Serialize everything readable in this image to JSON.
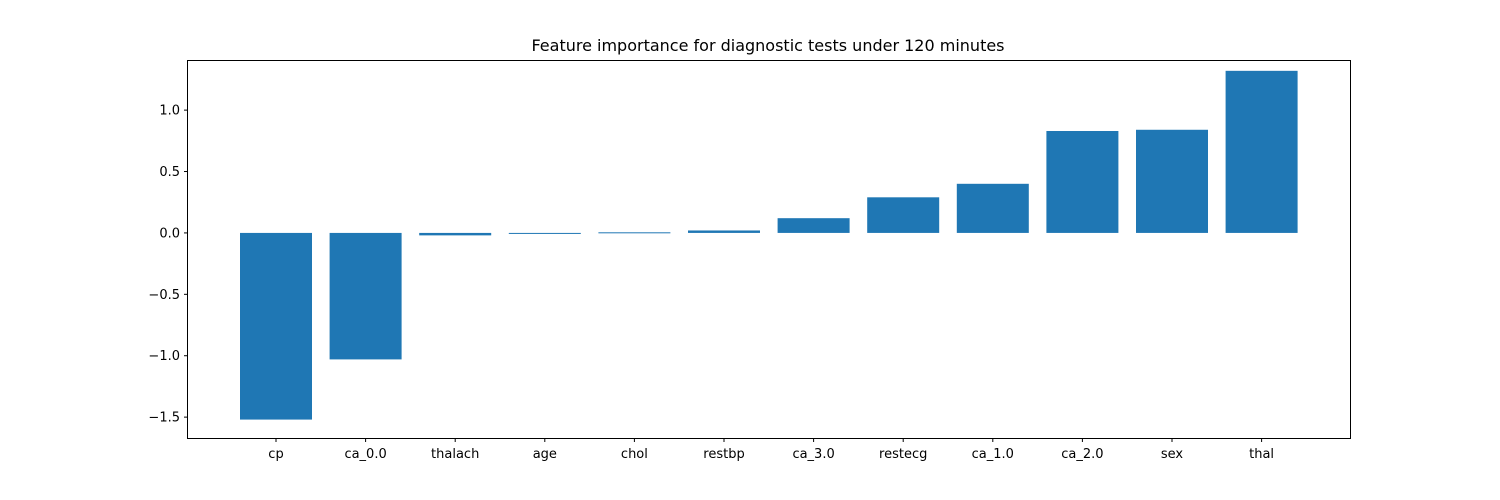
{
  "chart_data": {
    "type": "bar",
    "title": "Feature importance for diagnostic tests under 120 minutes",
    "xlabel": "",
    "ylabel": "",
    "categories": [
      "cp",
      "ca_0.0",
      "thalach",
      "age",
      "chol",
      "restbp",
      "ca_3.0",
      "restecg",
      "ca_1.0",
      "ca_2.0",
      "sex",
      "thal"
    ],
    "values": [
      -1.52,
      -1.03,
      -0.02,
      -0.005,
      0.005,
      0.02,
      0.12,
      0.29,
      0.4,
      0.83,
      0.84,
      1.32
    ],
    "ylim": [
      -1.67,
      1.4
    ],
    "yticks": [
      -1.5,
      -1.0,
      -0.5,
      0.0,
      0.5,
      1.0
    ],
    "ytick_labels": [
      "−1.5",
      "−1.0",
      "−0.5",
      "0.0",
      "0.5",
      "1.0"
    ],
    "bar_color": "#1f77b4",
    "grid": false,
    "legend": "none"
  }
}
